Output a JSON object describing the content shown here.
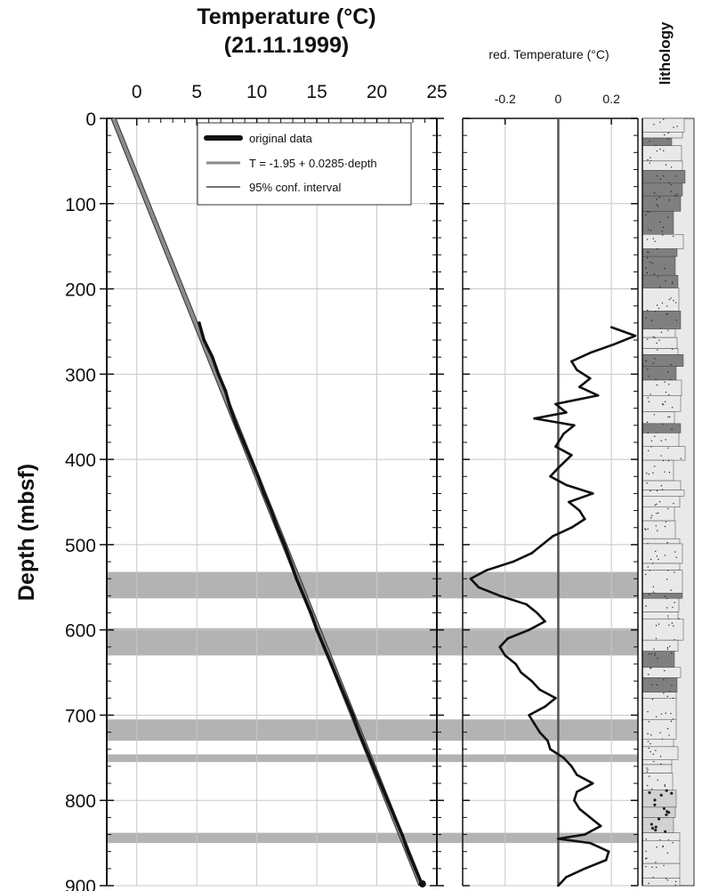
{
  "chart_data": [
    {
      "type": "line",
      "title": "Temperature (°C)",
      "subtitle": "(21.11.1999)",
      "ylabel": "Depth (mbsf)",
      "xlim": [
        -2.5,
        25
      ],
      "ylim": [
        900,
        0
      ],
      "y_inverted": true,
      "grid": true,
      "legend_position": "top-right",
      "x_ticks": [
        0,
        5,
        10,
        15,
        20,
        25
      ],
      "y_ticks": [
        0,
        100,
        200,
        300,
        400,
        500,
        600,
        700,
        800,
        900
      ],
      "regression": {
        "intercept": -1.95,
        "slope": 0.0285
      },
      "legend": [
        {
          "label": "original data",
          "style": "thick-black"
        },
        {
          "label": "T = -1.95 + 0.0285·depth",
          "style": "gray"
        },
        {
          "label": "95% conf. interval",
          "style": "dark-thin"
        }
      ],
      "series": [
        {
          "name": "original data",
          "points": [
            {
              "depth": 240,
              "temp": 5.2
            },
            {
              "depth": 260,
              "temp": 5.6
            },
            {
              "depth": 280,
              "temp": 6.3
            },
            {
              "depth": 300,
              "temp": 6.8
            },
            {
              "depth": 320,
              "temp": 7.4
            },
            {
              "depth": 340,
              "temp": 7.8
            },
            {
              "depth": 360,
              "temp": 8.3
            },
            {
              "depth": 380,
              "temp": 8.9
            },
            {
              "depth": 400,
              "temp": 9.5
            },
            {
              "depth": 420,
              "temp": 10.1
            },
            {
              "depth": 440,
              "temp": 10.6
            },
            {
              "depth": 460,
              "temp": 11.2
            },
            {
              "depth": 480,
              "temp": 11.7
            },
            {
              "depth": 500,
              "temp": 12.3
            },
            {
              "depth": 520,
              "temp": 12.8
            },
            {
              "depth": 540,
              "temp": 13.3
            },
            {
              "depth": 560,
              "temp": 13.9
            },
            {
              "depth": 580,
              "temp": 14.5
            },
            {
              "depth": 600,
              "temp": 15.0
            },
            {
              "depth": 620,
              "temp": 15.6
            },
            {
              "depth": 640,
              "temp": 16.2
            },
            {
              "depth": 660,
              "temp": 16.8
            },
            {
              "depth": 680,
              "temp": 17.4
            },
            {
              "depth": 700,
              "temp": 18.0
            },
            {
              "depth": 720,
              "temp": 18.5
            },
            {
              "depth": 740,
              "temp": 19.1
            },
            {
              "depth": 760,
              "temp": 19.7
            },
            {
              "depth": 780,
              "temp": 20.3
            },
            {
              "depth": 800,
              "temp": 20.9
            },
            {
              "depth": 820,
              "temp": 21.5
            },
            {
              "depth": 840,
              "temp": 22.1
            },
            {
              "depth": 860,
              "temp": 22.6
            },
            {
              "depth": 880,
              "temp": 23.2
            },
            {
              "depth": 900,
              "temp": 23.8
            }
          ]
        }
      ]
    },
    {
      "type": "line",
      "title": "red. Temperature (°C)",
      "xlim": [
        -0.36,
        0.3
      ],
      "ylim": [
        900,
        0
      ],
      "y_inverted": true,
      "grid": true,
      "x_ticks": [
        -0.2,
        0,
        0.2
      ],
      "x_tick_labels": [
        "-0.2",
        "0",
        "0.2"
      ],
      "series": [
        {
          "name": "reduced temperature",
          "points": [
            {
              "depth": 245,
              "value": 0.2
            },
            {
              "depth": 255,
              "value": 0.29
            },
            {
              "depth": 265,
              "value": 0.21
            },
            {
              "depth": 275,
              "value": 0.12
            },
            {
              "depth": 285,
              "value": 0.05
            },
            {
              "depth": 295,
              "value": 0.07
            },
            {
              "depth": 305,
              "value": 0.12
            },
            {
              "depth": 315,
              "value": 0.08
            },
            {
              "depth": 325,
              "value": 0.15
            },
            {
              "depth": 335,
              "value": -0.01
            },
            {
              "depth": 345,
              "value": 0.03
            },
            {
              "depth": 352,
              "value": -0.09
            },
            {
              "depth": 360,
              "value": 0.06
            },
            {
              "depth": 370,
              "value": 0.02
            },
            {
              "depth": 385,
              "value": -0.01
            },
            {
              "depth": 395,
              "value": 0.05
            },
            {
              "depth": 410,
              "value": 0.0
            },
            {
              "depth": 420,
              "value": -0.03
            },
            {
              "depth": 430,
              "value": 0.03
            },
            {
              "depth": 440,
              "value": 0.13
            },
            {
              "depth": 450,
              "value": 0.04
            },
            {
              "depth": 460,
              "value": 0.08
            },
            {
              "depth": 470,
              "value": 0.1
            },
            {
              "depth": 480,
              "value": 0.05
            },
            {
              "depth": 490,
              "value": -0.02
            },
            {
              "depth": 500,
              "value": -0.06
            },
            {
              "depth": 510,
              "value": -0.1
            },
            {
              "depth": 520,
              "value": -0.17
            },
            {
              "depth": 530,
              "value": -0.27
            },
            {
              "depth": 540,
              "value": -0.33
            },
            {
              "depth": 550,
              "value": -0.3
            },
            {
              "depth": 560,
              "value": -0.22
            },
            {
              "depth": 570,
              "value": -0.12
            },
            {
              "depth": 580,
              "value": -0.08
            },
            {
              "depth": 590,
              "value": -0.05
            },
            {
              "depth": 600,
              "value": -0.11
            },
            {
              "depth": 610,
              "value": -0.19
            },
            {
              "depth": 620,
              "value": -0.22
            },
            {
              "depth": 630,
              "value": -0.2
            },
            {
              "depth": 640,
              "value": -0.16
            },
            {
              "depth": 650,
              "value": -0.14
            },
            {
              "depth": 660,
              "value": -0.1
            },
            {
              "depth": 670,
              "value": -0.07
            },
            {
              "depth": 680,
              "value": -0.01
            },
            {
              "depth": 690,
              "value": -0.05
            },
            {
              "depth": 700,
              "value": -0.11
            },
            {
              "depth": 710,
              "value": -0.09
            },
            {
              "depth": 720,
              "value": -0.07
            },
            {
              "depth": 730,
              "value": -0.04
            },
            {
              "depth": 740,
              "value": -0.03
            },
            {
              "depth": 750,
              "value": 0.02
            },
            {
              "depth": 760,
              "value": 0.05
            },
            {
              "depth": 770,
              "value": 0.07
            },
            {
              "depth": 780,
              "value": 0.13
            },
            {
              "depth": 790,
              "value": 0.07
            },
            {
              "depth": 800,
              "value": 0.06
            },
            {
              "depth": 810,
              "value": 0.08
            },
            {
              "depth": 820,
              "value": 0.12
            },
            {
              "depth": 830,
              "value": 0.16
            },
            {
              "depth": 840,
              "value": 0.1
            },
            {
              "depth": 845,
              "value": 0.0
            },
            {
              "depth": 850,
              "value": 0.12
            },
            {
              "depth": 860,
              "value": 0.19
            },
            {
              "depth": 870,
              "value": 0.18
            },
            {
              "depth": 880,
              "value": 0.1
            },
            {
              "depth": 890,
              "value": 0.03
            },
            {
              "depth": 900,
              "value": 0.0
            }
          ]
        }
      ]
    }
  ],
  "lithology": {
    "label": "lithology"
  },
  "shaded_intervals": [
    {
      "top": 532,
      "bottom": 563
    },
    {
      "top": 598,
      "bottom": 630
    },
    {
      "top": 705,
      "bottom": 730
    },
    {
      "top": 746,
      "bottom": 755
    },
    {
      "top": 838,
      "bottom": 850
    }
  ],
  "colors": {
    "axis": "#111111",
    "grid": "#c8c8c8",
    "shade": "#b3b3b3",
    "data": "#111111",
    "fit": "#8a8a8a",
    "conf": "#444444",
    "zero_line": "#555555",
    "lith_sand": "#e9e9e9",
    "lith_mud": "#7f7f7f",
    "lith_gravel": "#d2d2d2"
  }
}
